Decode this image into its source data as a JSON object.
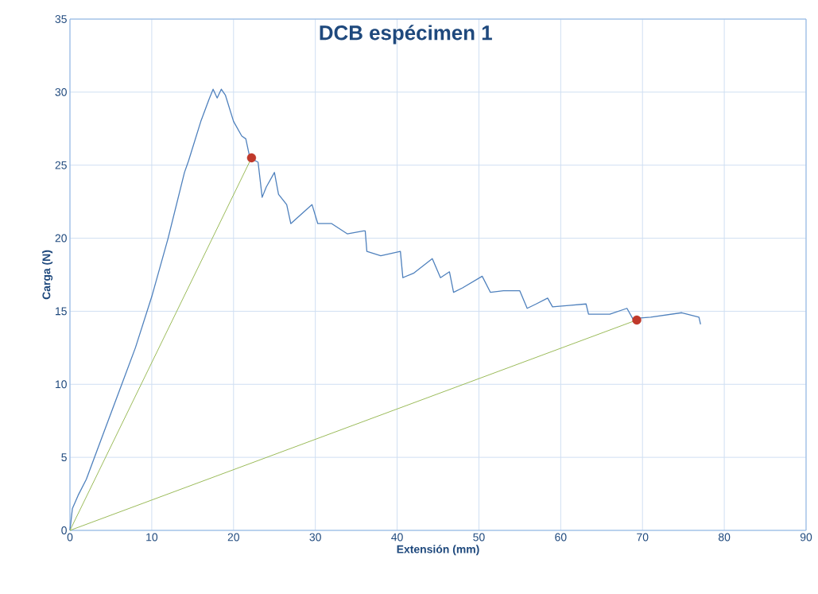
{
  "chart_data": {
    "type": "line",
    "title": "DCB espécimen 1",
    "xlabel": "Extensión (mm)",
    "ylabel": "Carga (N)",
    "xlim": [
      0,
      90
    ],
    "ylim": [
      0,
      35
    ],
    "xticks": [
      0,
      10,
      20,
      30,
      40,
      50,
      60,
      70,
      80,
      90
    ],
    "yticks": [
      0,
      5,
      10,
      15,
      20,
      25,
      30,
      35
    ],
    "grid": true,
    "series": [
      {
        "color": "#4f81bd",
        "x": [
          0,
          0.3,
          1,
          2,
          4,
          6,
          8,
          10,
          12,
          14,
          14.5,
          16,
          17,
          17.5,
          18,
          18.5,
          19,
          20,
          21,
          21.5,
          22,
          23,
          23.5,
          24,
          25,
          25.5,
          26.5,
          27,
          28,
          29,
          29.6,
          30.3,
          32,
          33.9,
          35.9,
          36.1,
          36.3,
          38,
          40.4,
          40.7,
          42,
          44.3,
          45.3,
          46.4,
          46.9,
          48,
          50.4,
          51.4,
          53,
          55,
          55.9,
          57,
          58.4,
          59,
          61,
          63.1,
          63.4,
          66,
          68.1,
          68.8,
          71,
          74.8,
          76.9,
          77.1
        ],
        "values": [
          0,
          1.5,
          2.4,
          3.5,
          6.5,
          9.5,
          12.5,
          16,
          20,
          24.5,
          25.3,
          28,
          29.5,
          30.2,
          29.6,
          30.2,
          29.8,
          28,
          27,
          26.8,
          25.5,
          25.2,
          22.8,
          23.5,
          24.5,
          23,
          22.3,
          21,
          21.5,
          22,
          22.3,
          21,
          21,
          20.3,
          20.5,
          20.5,
          19.1,
          18.8,
          19.1,
          17.3,
          17.6,
          18.6,
          17.3,
          17.7,
          16.3,
          16.6,
          17.4,
          16.3,
          16.4,
          16.4,
          15.2,
          15.5,
          15.9,
          15.3,
          15.4,
          15.5,
          14.8,
          14.8,
          15.2,
          14.5,
          14.6,
          14.9,
          14.6,
          14.1
        ]
      },
      {
        "color": "#9bbb59",
        "x": [
          0,
          22.2
        ],
        "values": [
          0,
          25.5
        ]
      },
      {
        "color": "#9bbb59",
        "x": [
          0,
          69.3
        ],
        "values": [
          0,
          14.4
        ]
      },
      {
        "type": "scatter",
        "color": "#c0392b",
        "x": [
          22.2,
          69.3
        ],
        "values": [
          25.5,
          14.4
        ]
      }
    ]
  }
}
